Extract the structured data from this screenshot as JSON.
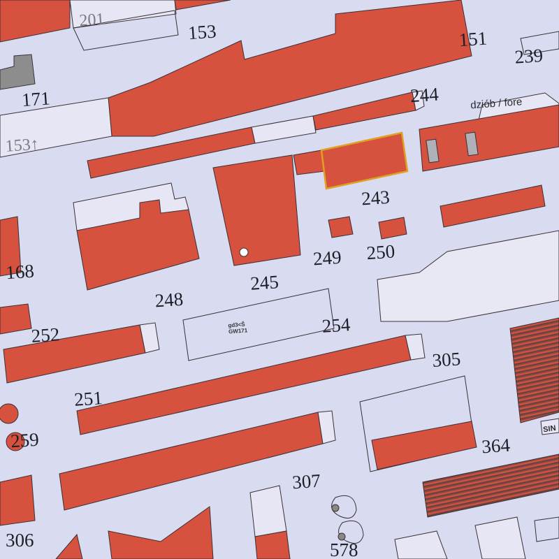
{
  "scene": "photo of printed paper model cut-out sheet",
  "colors": {
    "paper": "#d9dbf0",
    "part_red": "#d6513e",
    "outline": "#3a3036",
    "highlight": "#e0a020"
  },
  "labels": {
    "l201": "201",
    "l153": "153",
    "l151": "151",
    "l239": "239",
    "l171": "171",
    "l153b": "153↑",
    "l244": "244",
    "fore": "dziób / fore",
    "l243": "243",
    "l168": "168",
    "l248": "248",
    "l245": "245",
    "l249": "249",
    "l250": "250",
    "l252": "252",
    "l254": "254",
    "l251": "251",
    "l305": "305",
    "l259": "259",
    "l364": "364",
    "sin": "SIN",
    "l307": "307",
    "l306": "306",
    "l578": "578",
    "code1": "gd3<Ŝ",
    "code2": "GW171"
  }
}
